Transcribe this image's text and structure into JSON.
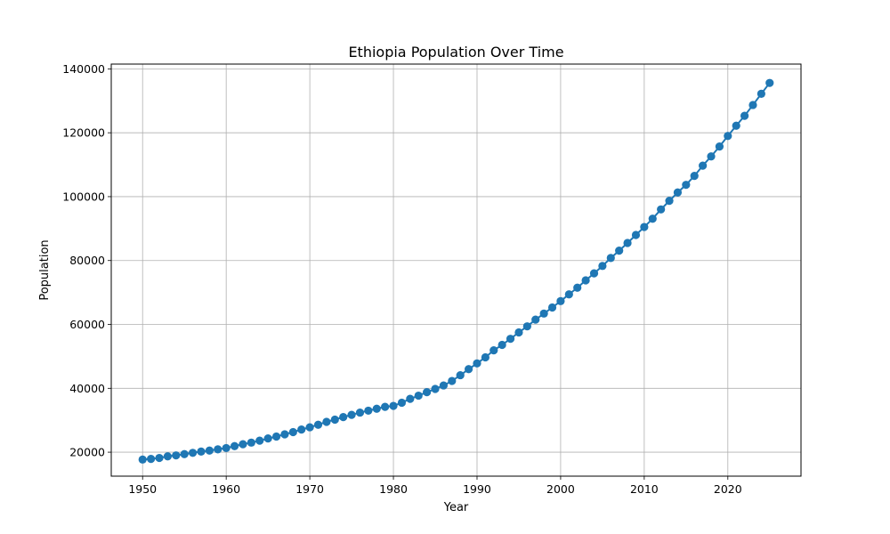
{
  "chart_data": {
    "type": "line",
    "title": "Ethiopia Population Over Time",
    "xlabel": "Year",
    "ylabel": "Population",
    "xlim": [
      1946.25,
      2028.75
    ],
    "ylim": [
      12500,
      141500
    ],
    "xticks": [
      1950,
      1960,
      1970,
      1980,
      1990,
      2000,
      2010,
      2020
    ],
    "yticks": [
      20000,
      40000,
      60000,
      80000,
      100000,
      120000,
      140000
    ],
    "grid": true,
    "legend": "none",
    "colors": {
      "series": "#1f77b4",
      "grid": "#b0b0b0",
      "axes": "#000000"
    },
    "series": [
      {
        "marker": "circle",
        "x": [
          1950,
          1951,
          1952,
          1953,
          1954,
          1955,
          1956,
          1957,
          1958,
          1959,
          1960,
          1961,
          1962,
          1963,
          1964,
          1965,
          1966,
          1967,
          1968,
          1969,
          1970,
          1971,
          1972,
          1973,
          1974,
          1975,
          1976,
          1977,
          1978,
          1979,
          1980,
          1981,
          1982,
          1983,
          1984,
          1985,
          1986,
          1987,
          1988,
          1989,
          1990,
          1991,
          1992,
          1993,
          1994,
          1995,
          1996,
          1997,
          1998,
          1999,
          2000,
          2001,
          2002,
          2003,
          2004,
          2005,
          2006,
          2007,
          2008,
          2009,
          2010,
          2011,
          2012,
          2013,
          2014,
          2015,
          2016,
          2017,
          2018,
          2019,
          2020,
          2021,
          2022,
          2023,
          2024,
          2025
        ],
        "y": [
          17700,
          17900,
          18200,
          18700,
          19000,
          19400,
          19800,
          20200,
          20500,
          20900,
          21300,
          21900,
          22500,
          23000,
          23600,
          24300,
          24900,
          25600,
          26300,
          27100,
          27800,
          28600,
          29500,
          30200,
          31000,
          31700,
          32400,
          33000,
          33600,
          34200,
          34500,
          35500,
          36700,
          37700,
          38800,
          39800,
          40900,
          42300,
          44100,
          46000,
          47800,
          49700,
          51900,
          53600,
          55500,
          57500,
          59400,
          61500,
          63400,
          65300,
          67300,
          69400,
          71500,
          73800,
          76000,
          78300,
          80800,
          83100,
          85500,
          88000,
          90500,
          93100,
          96000,
          98700,
          101300,
          103700,
          106500,
          109700,
          112600,
          115700,
          119000,
          122200,
          125300,
          128700,
          132200,
          135600
        ]
      }
    ]
  }
}
